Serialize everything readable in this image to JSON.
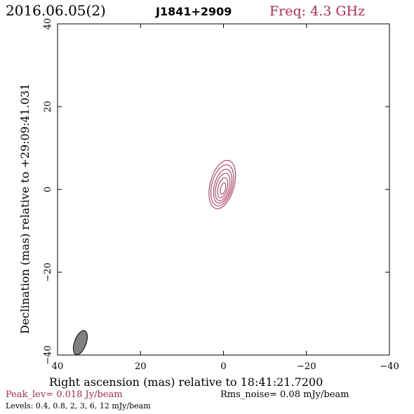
{
  "chart_data": {
    "type": "contour",
    "header": {
      "date": "2016.06.05(2)",
      "source": "J1841+2909",
      "freq": "Freq: 4.3 GHz"
    },
    "xlabel": "Right ascension (mas) relative to 18:41:21.7200",
    "ylabel": "Declination (mas) relative to +29:09:41.031",
    "xlim": [
      40,
      -40
    ],
    "ylim": [
      -40,
      40
    ],
    "x_ticks": [
      40,
      20,
      0,
      -20,
      -40
    ],
    "y_ticks": [
      40,
      20,
      0,
      -20,
      -40
    ],
    "x_tick_labels": [
      "40",
      "20",
      "0",
      "−20",
      "−40"
    ],
    "y_tick_labels": [
      "40",
      "20",
      "0",
      "−20",
      "−40"
    ],
    "contours": [
      {
        "level": 0.4,
        "cx": 0.3,
        "cy": 1.2,
        "a": 6.0,
        "b": 2.9,
        "pa": 15
      },
      {
        "level": 0.8,
        "cx": 0.3,
        "cy": 1.0,
        "a": 5.1,
        "b": 2.5,
        "pa": 15
      },
      {
        "level": 2,
        "cx": 0.2,
        "cy": 0.8,
        "a": 4.2,
        "b": 2.0,
        "pa": 15
      },
      {
        "level": 3,
        "cx": 0.2,
        "cy": 0.6,
        "a": 3.4,
        "b": 1.6,
        "pa": 15
      },
      {
        "level": 6,
        "cx": 0.2,
        "cy": 0.4,
        "a": 2.5,
        "b": 1.1,
        "pa": 15
      },
      {
        "level": 12,
        "cx": 0.1,
        "cy": 0.2,
        "a": 1.4,
        "b": 0.6,
        "pa": 15
      }
    ],
    "beam": {
      "cx": 34.5,
      "cy": -37.0,
      "a": 2.2,
      "b": 1.0,
      "pa": 20
    },
    "peak_label": "Peak_lev=  0.018 Jy/beam",
    "rms_label": "Rms_noise= 0.08 mJy/beam",
    "levels_label": "Levels: 0.4, 0.8,    2,    3,    6,   12 mJy/beam",
    "colors": {
      "contour": "#b22a4e",
      "accent_text": "#b22a4e",
      "beam_fill": "#808080",
      "axis": "#000000"
    }
  }
}
